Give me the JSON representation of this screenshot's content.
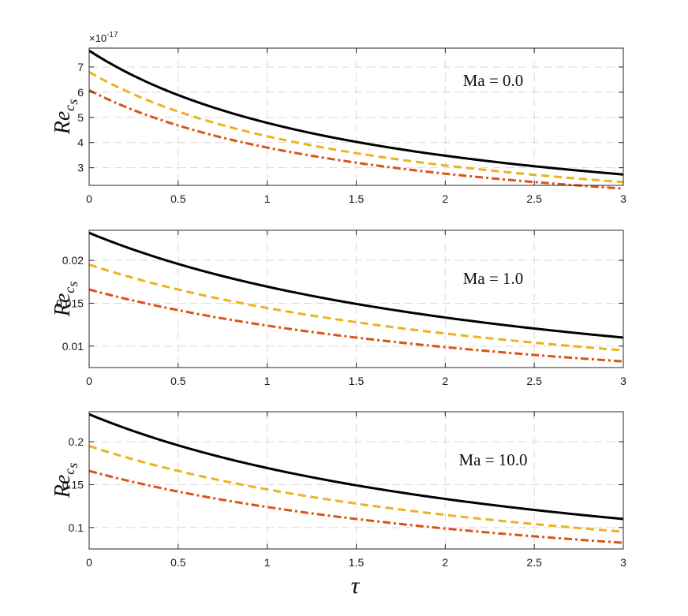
{
  "figure": {
    "xlabel": "τ",
    "colors": {
      "ref": "#000000",
      "dashed": "#EDB120",
      "dashdot": "#D95319",
      "grid": "#d9d9d9",
      "axis": "#262626"
    }
  },
  "chart_data": [
    {
      "type": "line",
      "annotation": "Ma = 0.0",
      "ylabel_main": "Re",
      "ylabel_sub": "c",
      "ylabel_subsub": "s",
      "multiplier_base": "×10",
      "multiplier_exp": "-17",
      "xlim": [
        0,
        3
      ],
      "ylim": [
        2.3,
        7.75
      ],
      "xticks": [
        0,
        0.5,
        1,
        1.5,
        2,
        2.5,
        3
      ],
      "xtick_labels": [
        "0",
        "0.5",
        "1",
        "1.5",
        "2",
        "2.5",
        "3"
      ],
      "yticks": [
        3,
        4,
        5,
        6,
        7
      ],
      "ytick_labels": [
        "3",
        "4",
        "5",
        "6",
        "7"
      ],
      "grid": true,
      "series": [
        {
          "name": "solid",
          "style": "solid",
          "color": "#000000",
          "a": 7.65,
          "b": 0.6
        },
        {
          "name": "dashed",
          "style": "dashed",
          "color": "#EDB120",
          "a": 6.8,
          "b": 0.6
        },
        {
          "name": "dashdot",
          "style": "dashdot",
          "color": "#D95319",
          "a": 6.08,
          "b": 0.6
        }
      ]
    },
    {
      "type": "line",
      "annotation": "Ma = 1.0",
      "ylabel_main": "Re",
      "ylabel_sub": "c",
      "ylabel_subsub": "s",
      "xlim": [
        0,
        3
      ],
      "ylim": [
        0.0075,
        0.0235
      ],
      "xticks": [
        0,
        0.5,
        1,
        1.5,
        2,
        2.5,
        3
      ],
      "xtick_labels": [
        "0",
        "0.5",
        "1",
        "1.5",
        "2",
        "2.5",
        "3"
      ],
      "yticks": [
        0.01,
        0.015,
        0.02
      ],
      "ytick_labels": [
        "0.01",
        "0.015",
        "0.02"
      ],
      "grid": true,
      "series": [
        {
          "name": "solid",
          "style": "solid",
          "color": "#000000",
          "a": 0.0232,
          "b": 0.37
        },
        {
          "name": "dashed",
          "style": "dashed",
          "color": "#EDB120",
          "a": 0.0195,
          "b": 0.35
        },
        {
          "name": "dashdot",
          "style": "dashdot",
          "color": "#D95319",
          "a": 0.0166,
          "b": 0.34
        }
      ]
    },
    {
      "type": "line",
      "annotation": "Ma = 10.0",
      "ylabel_main": "Re",
      "ylabel_sub": "c",
      "ylabel_subsub": "s",
      "xlim": [
        0,
        3
      ],
      "ylim": [
        0.075,
        0.235
      ],
      "xticks": [
        0,
        0.5,
        1,
        1.5,
        2,
        2.5,
        3
      ],
      "xtick_labels": [
        "0",
        "0.5",
        "1",
        "1.5",
        "2",
        "2.5",
        "3"
      ],
      "yticks": [
        0.1,
        0.15,
        0.2
      ],
      "ytick_labels": [
        "0.1",
        "0.15",
        "0.2"
      ],
      "grid": true,
      "series": [
        {
          "name": "solid",
          "style": "solid",
          "color": "#000000",
          "a": 0.232,
          "b": 0.37
        },
        {
          "name": "dashed",
          "style": "dashed",
          "color": "#EDB120",
          "a": 0.195,
          "b": 0.35
        },
        {
          "name": "dashdot",
          "style": "dashdot",
          "color": "#D95319",
          "a": 0.166,
          "b": 0.34
        }
      ]
    }
  ]
}
